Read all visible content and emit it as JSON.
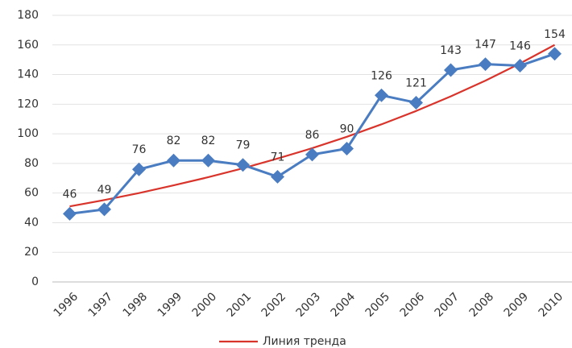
{
  "chart_data": {
    "type": "line",
    "categories": [
      "1996",
      "1997",
      "1998",
      "1999",
      "2000",
      "2001",
      "2002",
      "2003",
      "2004",
      "2005",
      "2006",
      "2007",
      "2008",
      "2009",
      "2010"
    ],
    "series": [
      {
        "color": "#4a7cc1",
        "values": [
          46,
          49,
          76,
          82,
          82,
          79,
          71,
          86,
          90,
          126,
          121,
          143,
          147,
          146,
          154
        ],
        "data_labels": true
      },
      {
        "name": "Линия тренда",
        "color": "#d9342b",
        "values": [
          51,
          55.3,
          60,
          65.2,
          70.7,
          76.7,
          83.3,
          90.3,
          98,
          106.4,
          115.4,
          125.3,
          135.9,
          147.5,
          160
        ]
      }
    ],
    "ylim": [
      0,
      180
    ],
    "yticks": [
      0,
      20,
      40,
      60,
      80,
      100,
      120,
      140,
      160,
      180
    ],
    "grid": true,
    "legend": "bottom"
  }
}
